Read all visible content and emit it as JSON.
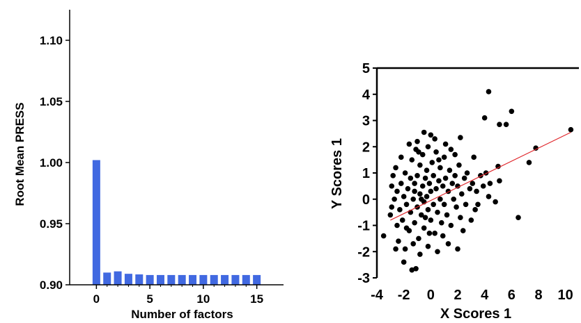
{
  "chart_data": [
    {
      "type": "bar",
      "title": "",
      "xlabel": "Number of factors",
      "ylabel": "Root Mean PRESS",
      "x": [
        0,
        1,
        2,
        3,
        4,
        5,
        6,
        7,
        8,
        9,
        10,
        11,
        12,
        13,
        14,
        15
      ],
      "values": [
        1.002,
        0.91,
        0.911,
        0.909,
        0.9085,
        0.908,
        0.908,
        0.908,
        0.908,
        0.908,
        0.908,
        0.908,
        0.908,
        0.908,
        0.908,
        0.908
      ],
      "xticks": [
        "0",
        "5",
        "10",
        "15"
      ],
      "xtick_values": [
        0,
        5,
        10,
        15
      ],
      "yticks": [
        "0.90",
        "0.95",
        "1.00",
        "1.05",
        "1.10"
      ],
      "ytick_values": [
        0.9,
        0.95,
        1.0,
        1.05,
        1.1
      ],
      "xlim": [
        -2.5,
        17.5
      ],
      "ylim": [
        0.9,
        1.125
      ],
      "bar_color": "#4169e1",
      "grid": false
    },
    {
      "type": "scatter",
      "title": "",
      "xlabel": "X Scores 1",
      "ylabel": "Y Scores 1",
      "xticks": [
        "-4",
        "-2",
        "0",
        "2",
        "4",
        "6",
        "8",
        "10"
      ],
      "xtick_values": [
        -4,
        -2,
        0,
        2,
        4,
        6,
        8,
        10
      ],
      "yticks": [
        "-3",
        "-2",
        "-1",
        "0",
        "1",
        "2",
        "3",
        "4",
        "5"
      ],
      "ytick_values": [
        -3,
        -2,
        -1,
        0,
        1,
        2,
        3,
        4,
        5
      ],
      "xlim": [
        -4,
        11
      ],
      "ylim": [
        -3,
        5
      ],
      "grid": false,
      "point_color": "#000000",
      "fit_line": {
        "x": [
          -3.0,
          10.4
        ],
        "y": [
          -0.8,
          2.55
        ],
        "color": "#e0262b"
      },
      "points": [
        [
          4.3,
          4.1
        ],
        [
          10.4,
          2.65
        ],
        [
          6.0,
          3.35
        ],
        [
          5.1,
          2.85
        ],
        [
          5.6,
          2.85
        ],
        [
          4.0,
          3.1
        ],
        [
          7.8,
          1.95
        ],
        [
          6.5,
          -0.7
        ],
        [
          7.3,
          1.4
        ],
        [
          5.0,
          1.25
        ],
        [
          5.1,
          0.7
        ],
        [
          4.3,
          0.1
        ],
        [
          4.8,
          -0.1
        ],
        [
          3.3,
          -0.4
        ],
        [
          2.0,
          -1.9
        ],
        [
          -2.0,
          -2.4
        ],
        [
          -1.4,
          -2.7
        ],
        [
          -1.1,
          -2.65
        ],
        [
          -3.5,
          -1.4
        ],
        [
          -2.5,
          -1.0
        ],
        [
          -0.5,
          2.55
        ],
        [
          0.0,
          2.45
        ],
        [
          -1.0,
          2.2
        ],
        [
          -2.6,
          1.2
        ],
        [
          2.2,
          2.35
        ],
        [
          1.8,
          1.7
        ],
        [
          -3.0,
          -0.6
        ],
        [
          -2.9,
          -0.3
        ],
        [
          -2.7,
          0.0
        ],
        [
          -2.5,
          0.3
        ],
        [
          -2.3,
          -0.4
        ],
        [
          -2.2,
          0.6
        ],
        [
          -2.1,
          -0.8
        ],
        [
          -2.0,
          0.1
        ],
        [
          -1.9,
          1.0
        ],
        [
          -1.8,
          -0.2
        ],
        [
          -1.7,
          0.4
        ],
        [
          -1.6,
          -1.2
        ],
        [
          -1.5,
          0.8
        ],
        [
          -1.5,
          -0.5
        ],
        [
          -1.4,
          1.5
        ],
        [
          -1.3,
          0.0
        ],
        [
          -1.2,
          -0.9
        ],
        [
          -1.2,
          0.6
        ],
        [
          -1.1,
          1.9
        ],
        [
          -1.0,
          -0.3
        ],
        [
          -1.0,
          0.9
        ],
        [
          -0.9,
          -1.5
        ],
        [
          -0.8,
          0.2
        ],
        [
          -0.8,
          1.3
        ],
        [
          -0.7,
          -0.6
        ],
        [
          -0.6,
          0.5
        ],
        [
          -0.6,
          1.7
        ],
        [
          -0.5,
          -0.1
        ],
        [
          -0.5,
          -1.1
        ],
        [
          -0.4,
          0.8
        ],
        [
          -0.3,
          0.1
        ],
        [
          -0.3,
          1.1
        ],
        [
          -0.2,
          -0.4
        ],
        [
          -0.2,
          2.0
        ],
        [
          -0.1,
          0.6
        ],
        [
          0.0,
          -0.8
        ],
        [
          0.0,
          0.3
        ],
        [
          0.1,
          1.4
        ],
        [
          0.2,
          -0.2
        ],
        [
          0.2,
          0.9
        ],
        [
          0.3,
          -1.3
        ],
        [
          0.4,
          0.4
        ],
        [
          0.4,
          1.8
        ],
        [
          0.5,
          -0.5
        ],
        [
          0.6,
          0.7
        ],
        [
          0.7,
          0.0
        ],
        [
          0.7,
          1.2
        ],
        [
          0.8,
          -0.9
        ],
        [
          0.9,
          0.5
        ],
        [
          1.0,
          1.6
        ],
        [
          1.0,
          -0.2
        ],
        [
          1.1,
          0.8
        ],
        [
          1.2,
          -0.6
        ],
        [
          1.3,
          0.3
        ],
        [
          1.4,
          1.1
        ],
        [
          1.5,
          -1.0
        ],
        [
          1.6,
          0.6
        ],
        [
          1.7,
          0.0
        ],
        [
          1.8,
          0.9
        ],
        [
          1.9,
          -0.3
        ],
        [
          2.0,
          0.5
        ],
        [
          2.1,
          1.3
        ],
        [
          2.2,
          -0.7
        ],
        [
          2.3,
          0.2
        ],
        [
          2.5,
          0.8
        ],
        [
          2.6,
          -0.2
        ],
        [
          2.7,
          1.0
        ],
        [
          2.9,
          0.4
        ],
        [
          3.0,
          -0.8
        ],
        [
          3.1,
          0.6
        ],
        [
          3.2,
          1.6
        ],
        [
          3.4,
          0.3
        ],
        [
          3.5,
          -0.2
        ],
        [
          3.7,
          0.9
        ],
        [
          3.9,
          0.5
        ],
        [
          4.1,
          1.0
        ],
        [
          4.4,
          0.6
        ],
        [
          -2.4,
          -1.6
        ],
        [
          -1.9,
          -1.9
        ],
        [
          -1.3,
          -1.7
        ],
        [
          -0.8,
          -2.1
        ],
        [
          -0.2,
          -1.8
        ],
        [
          0.5,
          -2.0
        ],
        [
          1.3,
          -1.7
        ],
        [
          -2.8,
          0.9
        ],
        [
          -2.2,
          1.6
        ],
        [
          -1.6,
          2.1
        ],
        [
          -0.9,
          1.8
        ],
        [
          0.3,
          2.3
        ],
        [
          1.1,
          2.1
        ],
        [
          1.5,
          1.9
        ],
        [
          -1.2,
          0.3
        ],
        [
          -0.4,
          -0.7
        ],
        [
          0.6,
          1.5
        ],
        [
          2.4,
          -1.2
        ],
        [
          -1.8,
          -1.1
        ],
        [
          -0.1,
          -1.3
        ],
        [
          0.9,
          -1.4
        ],
        [
          -2.6,
          -1.9
        ],
        [
          -2.9,
          0.5
        ],
        [
          -0.7,
          0.0
        ]
      ]
    }
  ]
}
